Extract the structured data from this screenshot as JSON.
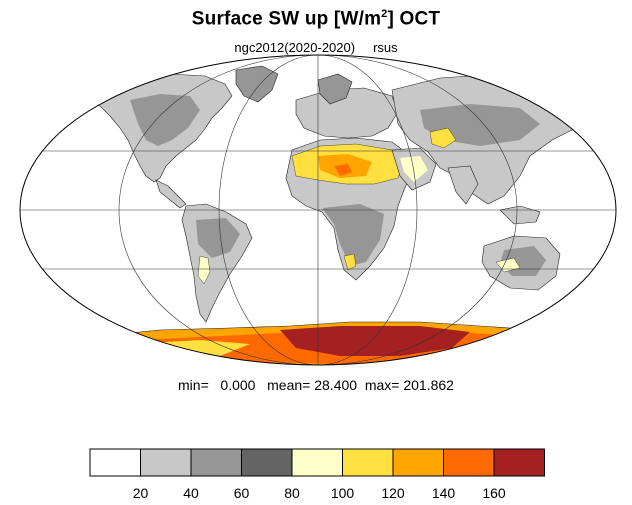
{
  "title": {
    "main": "Surface SW up [W/m",
    "sup": "2",
    "tail": "]  OCT"
  },
  "subtitle": {
    "run": "ngc2012(2020-2020)",
    "variable": "rsus"
  },
  "stats": {
    "min_label": "min=",
    "min_value": "0.000",
    "mean_label": "mean=",
    "mean_value": "28.400",
    "max_label": "max=",
    "max_value": "201.862"
  },
  "colorbar": {
    "labels": [
      "20",
      "40",
      "60",
      "80",
      "100",
      "120",
      "140",
      "160"
    ],
    "colors": [
      "#ffffff",
      "#c8c8c8",
      "#969696",
      "#646464",
      "#ffffc8",
      "#ffe040",
      "#ffa500",
      "#ff6a00",
      "#a52020"
    ]
  },
  "map": {
    "projection": "Mollweide",
    "land_color": "#c8c8c8",
    "ocean_color": "#ffffff"
  }
}
